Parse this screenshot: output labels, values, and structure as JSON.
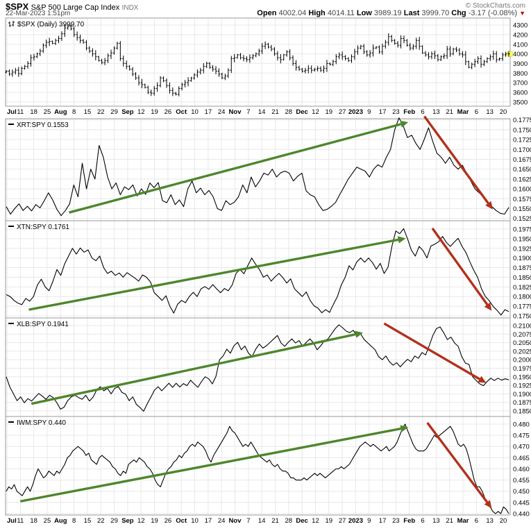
{
  "header": {
    "symbol": "$SPX",
    "name": "S&P 500 Large Cap Index",
    "exchange": "INDX",
    "timestamp": "22-Mar-2023 1:51pm",
    "copyright": "© StockCharts.com",
    "quote": {
      "open_label": "Open",
      "open": "4002.04",
      "high_label": "High",
      "high": "4014.11",
      "low_label": "Low",
      "low": "3989.19",
      "last_label": "Last",
      "last": "3999.70",
      "chg_label": "Chg",
      "chg": "-3.17 (-0.08%)",
      "direction_icon": "▼"
    }
  },
  "colors": {
    "line": "#000000",
    "up_arrow": "#4e862c",
    "down_arrow": "#b3301c",
    "grid": "#e8e8e8",
    "border": "#999999",
    "axis_text": "#000000",
    "highlight": "#ffff55"
  },
  "axis": {
    "ticks": [
      {
        "label": "Jul",
        "bold": true
      },
      {
        "label": "11"
      },
      {
        "label": "18"
      },
      {
        "label": "25"
      },
      {
        "label": "Aug",
        "bold": true
      },
      {
        "label": "8"
      },
      {
        "label": "15"
      },
      {
        "label": "22"
      },
      {
        "label": "29"
      },
      {
        "label": "Sep",
        "bold": true
      },
      {
        "label": "12"
      },
      {
        "label": "19"
      },
      {
        "label": "26"
      },
      {
        "label": "Oct",
        "bold": true
      },
      {
        "label": "10"
      },
      {
        "label": "17"
      },
      {
        "label": "24"
      },
      {
        "label": "Nov",
        "bold": true
      },
      {
        "label": "7"
      },
      {
        "label": "14"
      },
      {
        "label": "21"
      },
      {
        "label": "28"
      },
      {
        "label": "Dec",
        "bold": true
      },
      {
        "label": "12"
      },
      {
        "label": "19"
      },
      {
        "label": "27"
      },
      {
        "label": "2023",
        "bold": true
      },
      {
        "label": "9"
      },
      {
        "label": "17"
      },
      {
        "label": "23"
      },
      {
        "label": "Feb",
        "bold": true
      },
      {
        "label": "6"
      },
      {
        "label": "13"
      },
      {
        "label": "21"
      },
      {
        "label": "Mar",
        "bold": true
      },
      {
        "label": "6"
      },
      {
        "label": "13"
      },
      {
        "label": "20"
      }
    ]
  },
  "chart_data": [
    {
      "type": "candlestick",
      "title": "$SPX (Daily) 3999.70",
      "name": "$SPX",
      "last": "3999.70",
      "ylim": [
        3455,
        4373
      ],
      "yticks": [
        "3500",
        "3600",
        "3700",
        "3800",
        "3900",
        "4000",
        "4100",
        "4200",
        "4300"
      ],
      "closes": [
        3820,
        3790,
        3810,
        3830,
        3795,
        3850,
        3870,
        3900,
        3960,
        3970,
        4000,
        4030,
        4090,
        4120,
        4130,
        4110,
        4140,
        4160,
        4210,
        4270,
        4290,
        4260,
        4200,
        4170,
        4140,
        4120,
        4060,
        4030,
        4000,
        3970,
        3930,
        3910,
        3930,
        3980,
        4010,
        4060,
        4110,
        3950,
        3900,
        3870,
        3840,
        3790,
        3750,
        3700,
        3680,
        3650,
        3600,
        3590,
        3640,
        3670,
        3750,
        3720,
        3670,
        3620,
        3590,
        3580,
        3640,
        3680,
        3700,
        3720,
        3750,
        3780,
        3810,
        3830,
        3870,
        3900,
        3860,
        3840,
        3820,
        3790,
        3750,
        3770,
        3830,
        3950,
        3960,
        3990,
        3960,
        3950,
        3940,
        3960,
        3980,
        4000,
        4030,
        4080,
        4100,
        4070,
        4050,
        4000,
        3960,
        3940,
        3990,
        4020,
        3960,
        3900,
        3860,
        3840,
        3820,
        3830,
        3850,
        3830,
        3840,
        3850,
        3830,
        3850,
        3900,
        3890,
        3920,
        3970,
        3990,
        3970,
        3950,
        3930,
        3970,
        4020,
        4060,
        4080,
        4020,
        3990,
        4010,
        4060,
        4070,
        4020,
        4080,
        4120,
        4180,
        4140,
        4110,
        4090,
        4160,
        4140,
        4090,
        4060,
        4080,
        4140,
        4080,
        4010,
        3990,
        3970,
        4000,
        3980,
        3940,
        3970,
        3980,
        4050,
        4000,
        4050,
        4040,
        4000,
        3990,
        3920,
        3860,
        3890,
        3920,
        3950,
        3890,
        3920,
        3950,
        3970,
        4000,
        3940,
        3950,
        3990,
        4000,
        4000
      ]
    },
    {
      "type": "line",
      "name": "XRT:SPY",
      "last": "0.1553",
      "label": "XRT:SPY 0.1553",
      "ylim": [
        0.15192,
        0.17779
      ],
      "yticks": [
        "0.1525",
        "0.1550",
        "0.1575",
        "0.1600",
        "0.1625",
        "0.1650",
        "0.1675",
        "0.1700",
        "0.1725",
        "0.1750",
        "0.1775"
      ],
      "values": [
        0.1555,
        0.1536,
        0.155,
        0.1562,
        0.1545,
        0.1556,
        0.1544,
        0.156,
        0.1552,
        0.157,
        0.159,
        0.1572,
        0.1548,
        0.1532,
        0.1545,
        0.1562,
        0.161,
        0.158,
        0.1665,
        0.16,
        0.165,
        0.1625,
        0.171,
        0.168,
        0.163,
        0.16,
        0.1615,
        0.1585,
        0.1605,
        0.1598,
        0.161,
        0.1582,
        0.16,
        0.1586,
        0.1615,
        0.1603,
        0.1616,
        0.157,
        0.1565,
        0.1585,
        0.156,
        0.1572,
        0.1555,
        0.16,
        0.162,
        0.159,
        0.1602,
        0.1585,
        0.1596,
        0.158,
        0.155,
        0.1545,
        0.157,
        0.156,
        0.1566,
        0.158,
        0.161,
        0.159,
        0.163,
        0.1605,
        0.162,
        0.164,
        0.1635,
        0.165,
        0.163,
        0.1641,
        0.1645,
        0.164,
        0.162,
        0.1632,
        0.164,
        0.1595,
        0.1585,
        0.158,
        0.156,
        0.1545,
        0.1548,
        0.1556,
        0.1566,
        0.1586,
        0.1605,
        0.1625,
        0.164,
        0.1655,
        0.165,
        0.1645,
        0.163,
        0.165,
        0.1661,
        0.1655,
        0.168,
        0.17,
        0.175,
        0.178,
        0.176,
        0.173,
        0.1736,
        0.1715,
        0.17,
        0.1726,
        0.1755,
        0.172,
        0.169,
        0.168,
        0.1665,
        0.168,
        0.166,
        0.165,
        0.166,
        0.164,
        0.162,
        0.16,
        0.159,
        0.158,
        0.1565,
        0.1555,
        0.1545,
        0.1538,
        0.1536,
        0.1553
      ],
      "annotations": [
        {
          "kind": "arrow",
          "dir": "up",
          "x1": 0.125,
          "v1": 0.154,
          "x2": 0.8,
          "v2": 0.1769
        },
        {
          "kind": "arrow",
          "dir": "down",
          "x1": 0.832,
          "v1": 0.1784,
          "x2": 0.968,
          "v2": 0.1548
        }
      ]
    },
    {
      "type": "line",
      "name": "XTN:SPY",
      "last": "0.1761",
      "label": "XTN:SPY 0.1761",
      "ylim": [
        0.17446,
        0.19966
      ],
      "yticks": [
        "0.1750",
        "0.1775",
        "0.1800",
        "0.1825",
        "0.1850",
        "0.1875",
        "0.1900",
        "0.1925",
        "0.1950",
        "0.1975"
      ],
      "values": [
        0.1805,
        0.18,
        0.179,
        0.1783,
        0.1779,
        0.1795,
        0.1788,
        0.18,
        0.183,
        0.1845,
        0.1825,
        0.1815,
        0.184,
        0.187,
        0.1855,
        0.1885,
        0.1905,
        0.1925,
        0.191,
        0.1926,
        0.1915,
        0.1921,
        0.19,
        0.1893,
        0.1905,
        0.1875,
        0.186,
        0.1866,
        0.1855,
        0.1861,
        0.185,
        0.1862,
        0.1855,
        0.1848,
        0.184,
        0.1856,
        0.185,
        0.1838,
        0.181,
        0.18,
        0.179,
        0.1802,
        0.1775,
        0.1757,
        0.178,
        0.179,
        0.1784,
        0.18,
        0.1811,
        0.18,
        0.182,
        0.1826,
        0.1819,
        0.1831,
        0.182,
        0.181,
        0.1821,
        0.1815,
        0.183,
        0.186,
        0.187,
        0.1859,
        0.188,
        0.19,
        0.1884,
        0.187,
        0.185,
        0.1856,
        0.184,
        0.1851,
        0.186,
        0.1849,
        0.1835,
        0.1846,
        0.182,
        0.181,
        0.18,
        0.1812,
        0.179,
        0.1776,
        0.177,
        0.1758,
        0.1766,
        0.1759,
        0.178,
        0.18,
        0.183,
        0.185,
        0.188,
        0.1869,
        0.189,
        0.19,
        0.1889,
        0.19,
        0.1888,
        0.1871,
        0.1886,
        0.186,
        0.1876,
        0.193,
        0.197,
        0.1963,
        0.1976,
        0.195,
        0.192,
        0.1905,
        0.193,
        0.1919,
        0.19,
        0.1931,
        0.1936,
        0.1942,
        0.1956,
        0.194,
        0.193,
        0.1941,
        0.1951,
        0.193,
        0.1914,
        0.189,
        0.1868,
        0.185,
        0.182,
        0.18,
        0.1789,
        0.1774,
        0.1764,
        0.1752,
        0.1766,
        0.1761
      ],
      "annotations": [
        {
          "kind": "arrow",
          "dir": "up",
          "x1": 0.045,
          "v1": 0.1766,
          "x2": 0.795,
          "v2": 0.1951
        },
        {
          "kind": "arrow",
          "dir": "down",
          "x1": 0.848,
          "v1": 0.1977,
          "x2": 0.966,
          "v2": 0.1763
        }
      ]
    },
    {
      "type": "line",
      "name": "XLB:SPY",
      "last": "0.1941",
      "label": "XLB:SPY 0.1941",
      "ylim": [
        0.18337,
        0.21224
      ],
      "yticks": [
        "0.1850",
        "0.1875",
        "0.1900",
        "0.1925",
        "0.1950",
        "0.1975",
        "0.2000",
        "0.2025",
        "0.2050",
        "0.2075",
        "0.2100"
      ],
      "values": [
        0.195,
        0.192,
        0.19,
        0.188,
        0.1891,
        0.1874,
        0.1886,
        0.1879,
        0.189,
        0.1901,
        0.1893,
        0.1884,
        0.1896,
        0.1889,
        0.1874,
        0.1855,
        0.1861,
        0.188,
        0.1891,
        0.1896,
        0.1889,
        0.1884,
        0.1896,
        0.1879,
        0.189,
        0.1911,
        0.1921,
        0.1909,
        0.1916,
        0.19,
        0.1916,
        0.1921,
        0.1904,
        0.1899,
        0.188,
        0.1891,
        0.1869,
        0.186,
        0.1849,
        0.1871,
        0.189,
        0.1911,
        0.1921,
        0.1909,
        0.192,
        0.1931,
        0.1919,
        0.1931,
        0.192,
        0.193,
        0.1924,
        0.194,
        0.1929,
        0.1919,
        0.1936,
        0.195,
        0.1944,
        0.1929,
        0.1951,
        0.2,
        0.2011,
        0.2031,
        0.2019,
        0.2041,
        0.2051,
        0.2029,
        0.204,
        0.2019,
        0.2009,
        0.2031,
        0.2046,
        0.2034,
        0.2041,
        0.2051,
        0.2061,
        0.2071,
        0.2049,
        0.2039,
        0.2051,
        0.2061,
        0.2049,
        0.2056,
        0.2039,
        0.2051,
        0.2061,
        0.2049,
        0.2029,
        0.2041,
        0.2056,
        0.2061,
        0.2076,
        0.2091,
        0.2102,
        0.2094,
        0.2084,
        0.2079,
        0.2086,
        0.2069,
        0.2076,
        0.2059,
        0.2049,
        0.2039,
        0.2029,
        0.2009,
        0.2,
        0.2011,
        0.1994,
        0.1984,
        0.1991,
        0.1979,
        0.1991,
        0.2001,
        0.1994,
        0.2011,
        0.2004,
        0.2021,
        0.2014,
        0.2041,
        0.2071,
        0.2091,
        0.2096,
        0.2079,
        0.2059,
        0.2066,
        0.2049,
        0.2039,
        0.2009,
        0.199,
        0.1986,
        0.195,
        0.1939,
        0.1929,
        0.1924,
        0.1936,
        0.1946,
        0.1939,
        0.1946,
        0.194,
        0.1944,
        0.1941
      ],
      "annotations": [
        {
          "kind": "arrow",
          "dir": "up",
          "x1": 0.05,
          "v1": 0.1871,
          "x2": 0.71,
          "v2": 0.2079
        },
        {
          "kind": "arrow",
          "dir": "down",
          "x1": 0.752,
          "v1": 0.2106,
          "x2": 0.955,
          "v2": 0.1932
        }
      ]
    },
    {
      "type": "line",
      "name": "IWM:SPY",
      "last": "0.440",
      "label": "IWM:SPY 0.440",
      "ylim": [
        0.43938,
        0.48341
      ],
      "yticks": [
        "0.440",
        "0.445",
        "0.450",
        "0.455",
        "0.460",
        "0.465",
        "0.470",
        "0.475",
        "0.480"
      ],
      "values": [
        0.45,
        0.452,
        0.451,
        0.453,
        0.45,
        0.449,
        0.448,
        0.45,
        0.452,
        0.45,
        0.453,
        0.457,
        0.46,
        0.458,
        0.456,
        0.457,
        0.459,
        0.458,
        0.457,
        0.459,
        0.458,
        0.46,
        0.462,
        0.465,
        0.466,
        0.468,
        0.469,
        0.47,
        0.469,
        0.468,
        0.466,
        0.467,
        0.464,
        0.463,
        0.462,
        0.465,
        0.466,
        0.465,
        0.464,
        0.463,
        0.461,
        0.46,
        0.458,
        0.457,
        0.459,
        0.458,
        0.462,
        0.463,
        0.464,
        0.463,
        0.465,
        0.464,
        0.463,
        0.461,
        0.46,
        0.458,
        0.455,
        0.453,
        0.452,
        0.455,
        0.458,
        0.46,
        0.461,
        0.463,
        0.464,
        0.466,
        0.465,
        0.467,
        0.468,
        0.47,
        0.471,
        0.47,
        0.472,
        0.471,
        0.47,
        0.468,
        0.465,
        0.463,
        0.466,
        0.468,
        0.47,
        0.472,
        0.474,
        0.476,
        0.479,
        0.477,
        0.476,
        0.474,
        0.472,
        0.47,
        0.471,
        0.47,
        0.472,
        0.47,
        0.468,
        0.466,
        0.465,
        0.464,
        0.463,
        0.464,
        0.462,
        0.461,
        0.462,
        0.46,
        0.459,
        0.459,
        0.458,
        0.456,
        0.456,
        0.455,
        0.455,
        0.455,
        0.456,
        0.455,
        0.456,
        0.457,
        0.458,
        0.457,
        0.458,
        0.457,
        0.456,
        0.457,
        0.458,
        0.459,
        0.46,
        0.46,
        0.461,
        0.46,
        0.461,
        0.462,
        0.464,
        0.466,
        0.468,
        0.47,
        0.471,
        0.472,
        0.471,
        0.47,
        0.471,
        0.47,
        0.469,
        0.468,
        0.469,
        0.47,
        0.468,
        0.469,
        0.47,
        0.472,
        0.475,
        0.478,
        0.48,
        0.477,
        0.474,
        0.471,
        0.469,
        0.468,
        0.468,
        0.468,
        0.469,
        0.471,
        0.473,
        0.475,
        0.474,
        0.475,
        0.476,
        0.477,
        0.478,
        0.479,
        0.477,
        0.474,
        0.471,
        0.47,
        0.471,
        0.469,
        0.465,
        0.46,
        0.455,
        0.452,
        0.452,
        0.45,
        0.447,
        0.445,
        0.443,
        0.441,
        0.44,
        0.441,
        0.44,
        0.443,
        0.442,
        0.44
      ],
      "annotations": [
        {
          "kind": "arrow",
          "dir": "up",
          "x1": 0.028,
          "v1": 0.4455,
          "x2": 0.8,
          "v2": 0.4786
        },
        {
          "kind": "arrow",
          "dir": "down",
          "x1": 0.838,
          "v1": 0.4806,
          "x2": 0.966,
          "v2": 0.4424
        }
      ]
    }
  ]
}
